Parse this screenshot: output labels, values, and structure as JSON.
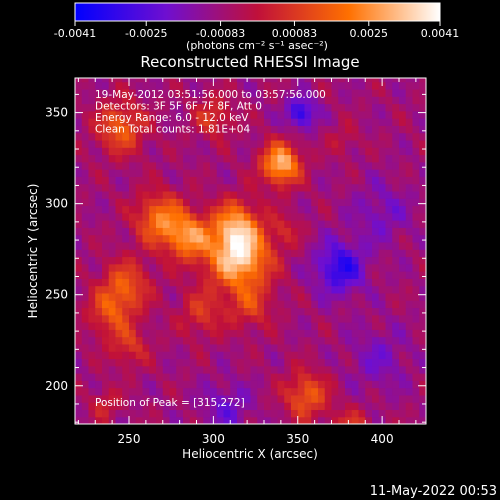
{
  "chart_data": {
    "type": "heatmap",
    "title": "Reconstructed RHESSI Image",
    "xlabel": "Heliocentric X (arcsec)",
    "ylabel": "Heliocentric Y (arcsec)",
    "xlim": [
      218,
      426
    ],
    "ylim": [
      179,
      369
    ],
    "x_ticks": [
      250,
      300,
      350,
      400
    ],
    "y_ticks": [
      200,
      250,
      300,
      350
    ],
    "colorbar": {
      "min": -0.0041,
      "max": 0.0041,
      "ticks": [
        -0.0041,
        -0.0025,
        -0.00083,
        0.00083,
        0.0025,
        0.0041
      ],
      "tick_labels": [
        "-0.0041",
        "-0.0025",
        "-0.00083",
        "0.00083",
        "0.0025",
        "0.0041"
      ],
      "unit_label": "(photons cm⁻² s⁻¹ asec⁻²)",
      "colors": [
        "#0000ff",
        "#6f0fd0",
        "#c0103a",
        "#ff7000",
        "#ffffff"
      ]
    },
    "annotations": [
      "19-May-2012 03:51:56.000 to 03:57:56.000",
      "Detectors: 3F 5F 6F 7F 8F, Att 0",
      "Energy Range: 6.0 - 12.0 keV",
      "Clean     Total counts: 1.81E+04"
    ],
    "peak_label": "Position of Peak = [315,272]",
    "peak": [
      315,
      272
    ],
    "background_level": -0.0008,
    "sources": [
      {
        "x": 315,
        "y": 272,
        "sigma": 13,
        "amp": 0.0045
      },
      {
        "x": 285,
        "y": 282,
        "sigma": 9,
        "amp": 0.003
      },
      {
        "x": 268,
        "y": 292,
        "sigma": 10,
        "amp": 0.0028
      },
      {
        "x": 340,
        "y": 322,
        "sigma": 8,
        "amp": 0.004
      },
      {
        "x": 313,
        "y": 290,
        "sigma": 9,
        "amp": 0.0022
      },
      {
        "x": 245,
        "y": 342,
        "sigma": 10,
        "amp": 0.0024
      },
      {
        "x": 248,
        "y": 255,
        "sigma": 10,
        "amp": 0.0022
      },
      {
        "x": 238,
        "y": 240,
        "sigma": 9,
        "amp": 0.0018
      },
      {
        "x": 250,
        "y": 222,
        "sigma": 8,
        "amp": 0.0015
      },
      {
        "x": 300,
        "y": 348,
        "sigma": 8,
        "amp": 0.0016
      },
      {
        "x": 355,
        "y": 195,
        "sigma": 9,
        "amp": 0.0024
      },
      {
        "x": 382,
        "y": 175,
        "sigma": 8,
        "amp": 0.0018
      },
      {
        "x": 293,
        "y": 240,
        "sigma": 9,
        "amp": 0.0015
      },
      {
        "x": 322,
        "y": 244,
        "sigma": 9,
        "amp": 0.0015
      },
      {
        "x": 236,
        "y": 190,
        "sigma": 6,
        "amp": 0.0012
      },
      {
        "x": 377,
        "y": 335,
        "sigma": 6,
        "amp": 0.0008
      },
      {
        "x": 343,
        "y": 286,
        "sigma": 6,
        "amp": 0.001
      }
    ],
    "minima": [
      {
        "x": 375,
        "y": 265,
        "sigma": 10,
        "amp": -0.0025
      },
      {
        "x": 352,
        "y": 350,
        "sigma": 6,
        "amp": -0.0025
      },
      {
        "x": 308,
        "y": 188,
        "sigma": 10,
        "amp": -0.0012
      },
      {
        "x": 398,
        "y": 215,
        "sigma": 12,
        "amp": -0.001
      },
      {
        "x": 400,
        "y": 295,
        "sigma": 12,
        "amp": -0.001
      }
    ]
  },
  "timestamp": "11-May-2022 00:53"
}
